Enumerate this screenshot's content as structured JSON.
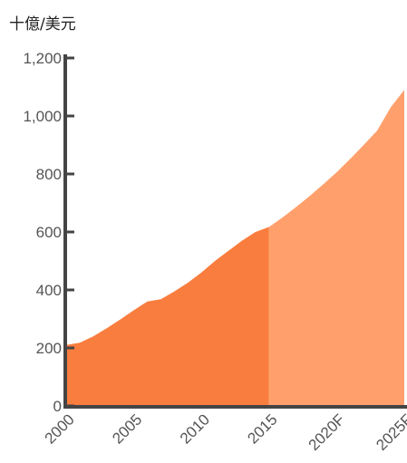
{
  "chart_data": {
    "type": "area",
    "unit_label": "十億/美元",
    "x_tick_labels": [
      "2000",
      "2005",
      "2010",
      "2015",
      "2020F",
      "2025F"
    ],
    "y_tick_labels": [
      "0",
      "200",
      "400",
      "600",
      "800",
      "1,000",
      "1,200"
    ],
    "ylim": [
      0,
      1200
    ],
    "xlim": [
      2000,
      2025
    ],
    "grid": false,
    "series": [
      {
        "segment": "historical",
        "color": "#F97D3E",
        "points": [
          [
            2000,
            210
          ],
          [
            2001,
            218
          ],
          [
            2002,
            240
          ],
          [
            2003,
            268
          ],
          [
            2004,
            298
          ],
          [
            2005,
            330
          ],
          [
            2006,
            360
          ],
          [
            2007,
            368
          ],
          [
            2008,
            395
          ],
          [
            2009,
            425
          ],
          [
            2010,
            460
          ],
          [
            2011,
            500
          ],
          [
            2012,
            535
          ],
          [
            2013,
            570
          ],
          [
            2014,
            600
          ],
          [
            2015,
            617
          ]
        ]
      },
      {
        "segment": "forecast",
        "color": "#FFA06C",
        "points": [
          [
            2015,
            617
          ],
          [
            2016,
            650
          ],
          [
            2017,
            686
          ],
          [
            2018,
            724
          ],
          [
            2019,
            764
          ],
          [
            2020,
            806
          ],
          [
            2021,
            852
          ],
          [
            2022,
            900
          ],
          [
            2023,
            950
          ],
          [
            2024,
            1030
          ],
          [
            2025,
            1090
          ]
        ]
      }
    ]
  }
}
